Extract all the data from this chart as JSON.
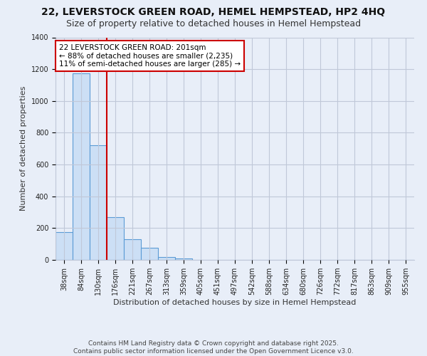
{
  "title": "22, LEVERSTOCK GREEN ROAD, HEMEL HEMPSTEAD, HP2 4HQ",
  "subtitle": "Size of property relative to detached houses in Hemel Hempstead",
  "xlabel": "Distribution of detached houses by size in Hemel Hempstead",
  "ylabel": "Number of detached properties",
  "categories": [
    "38sqm",
    "84sqm",
    "130sqm",
    "176sqm",
    "221sqm",
    "267sqm",
    "313sqm",
    "359sqm",
    "405sqm",
    "451sqm",
    "497sqm",
    "542sqm",
    "588sqm",
    "634sqm",
    "680sqm",
    "726sqm",
    "772sqm",
    "817sqm",
    "863sqm",
    "909sqm",
    "955sqm"
  ],
  "values": [
    175,
    1175,
    720,
    270,
    130,
    75,
    20,
    8,
    2,
    0,
    0,
    0,
    0,
    0,
    0,
    0,
    0,
    0,
    0,
    0,
    0
  ],
  "bar_color": "#ccdff5",
  "bar_edge_color": "#5b9bd5",
  "red_line_color": "#cc0000",
  "annotation_text": "22 LEVERSTOCK GREEN ROAD: 201sqm\n← 88% of detached houses are smaller (2,235)\n11% of semi-detached houses are larger (285) →",
  "annotation_box_facecolor": "#ffffff",
  "annotation_border_color": "#cc0000",
  "ylim": [
    0,
    1400
  ],
  "yticks": [
    0,
    200,
    400,
    600,
    800,
    1000,
    1200,
    1400
  ],
  "footer_text": "Contains HM Land Registry data © Crown copyright and database right 2025.\nContains public sector information licensed under the Open Government Licence v3.0.",
  "background_color": "#e8eef8",
  "grid_color": "#c0c8d8",
  "title_fontsize": 10,
  "subtitle_fontsize": 9,
  "axis_label_fontsize": 8,
  "tick_fontsize": 7,
  "annotation_fontsize": 7.5,
  "footer_fontsize": 6.5,
  "red_line_x": 2.5
}
